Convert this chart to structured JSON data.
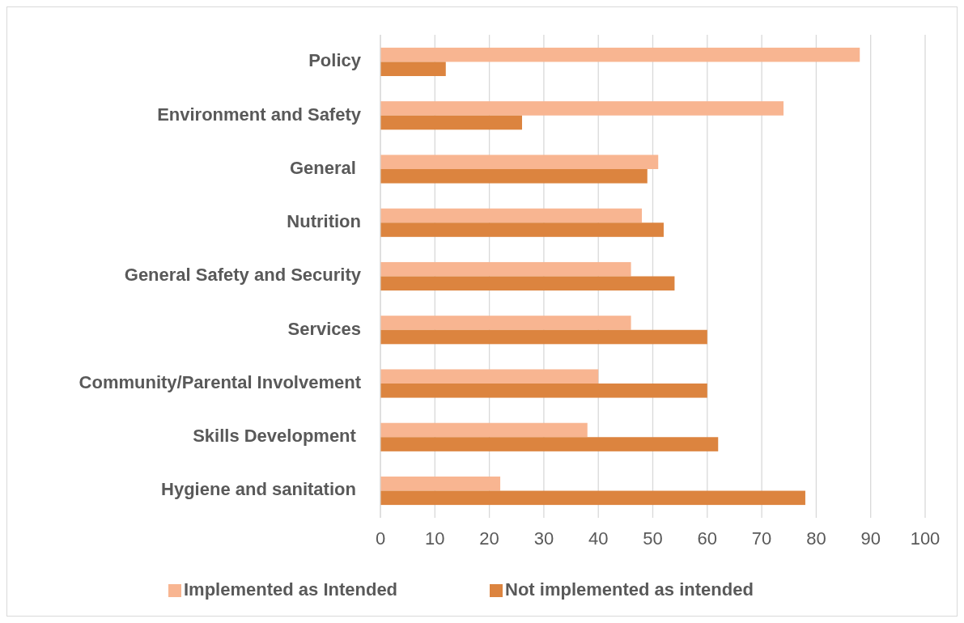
{
  "chart_data": {
    "type": "bar",
    "orientation": "horizontal",
    "categories": [
      "Policy",
      "Environment and Safety",
      "General ",
      "Nutrition",
      "General Safety and Security",
      "Services",
      "Community/Parental Involvement",
      "Skills Development ",
      "Hygiene and sanitation "
    ],
    "series": [
      {
        "name": "Implemented as Intended",
        "color": "#f8b591",
        "values": [
          88,
          74,
          51,
          48,
          46,
          46,
          40,
          38,
          22
        ]
      },
      {
        "name": "Not implemented as intended",
        "color": "#dc843f",
        "values": [
          12,
          26,
          49,
          52,
          54,
          60,
          60,
          62,
          78
        ]
      }
    ],
    "xlim": [
      0,
      100
    ],
    "xticks": [
      0,
      10,
      20,
      30,
      40,
      50,
      60,
      70,
      80,
      90,
      100
    ],
    "grid": "x",
    "legend": "bottom"
  }
}
